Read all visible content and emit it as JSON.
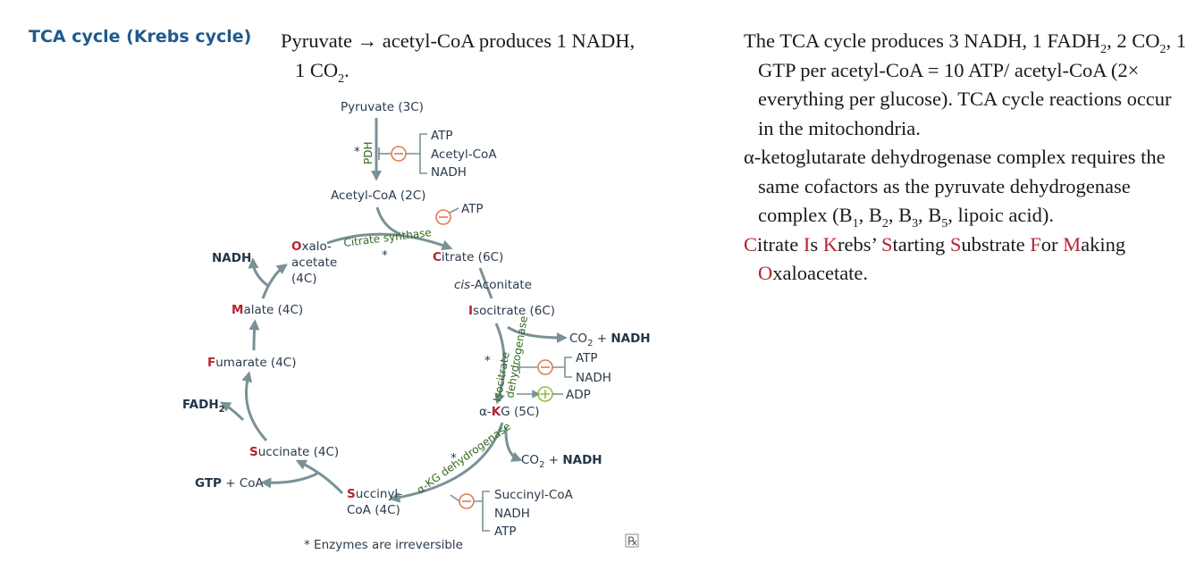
{
  "heading": "TCA cycle (Krebs cycle)",
  "intro": {
    "line1": "Pyruvate → acetyl-CoA produces 1 NADH,",
    "line2_a": "1 CO",
    "line2_sub": "2",
    "line2_b": "."
  },
  "right_text": {
    "p1_a": "The TCA cycle produces 3 NADH, 1 FADH",
    "p1_sub1": "2",
    "p1_b": ", 2 CO",
    "p1_sub2": "2",
    "p1_c": ", 1 GTP per acetyl-CoA = 10 ATP/ acetyl-CoA (2× everything per glucose). TCA cycle reactions occur in the mitochondria.",
    "p2_a": "α-ketoglutarate dehydrogenase complex requires the same cofactors as the pyruvate dehydrogenase complex (B",
    "p2_s1": "1",
    "p2_b": ", B",
    "p2_s2": "2",
    "p2_c": ", B",
    "p2_s3": "3",
    "p2_d": ", B",
    "p2_s5": "5",
    "p2_e": ", lipoic acid).",
    "mnemonic": [
      {
        "first": "C",
        "rest": "itrate "
      },
      {
        "first": "I",
        "rest": "s "
      },
      {
        "first": "K",
        "rest": "rebs’ "
      },
      {
        "first": "S",
        "rest": "tarting "
      },
      {
        "first": "S",
        "rest": "ubstrate "
      },
      {
        "first": "F",
        "rest": "or "
      },
      {
        "first": "M",
        "rest": "aking "
      },
      {
        "first": "O",
        "rest": "xaloacetate."
      }
    ]
  },
  "diagram": {
    "pyruvate": "Pyruvate (3C)",
    "pdh": "PDH",
    "star": "*",
    "pdh_inhib": [
      "ATP",
      "Acetyl-CoA",
      "NADH"
    ],
    "acetyl_coa": "Acetyl-CoA (2C)",
    "atp": "ATP",
    "citrate_synthase": "Citrate synthase",
    "oxaloacetate": {
      "first": "O",
      "rest": "xalo-",
      "line2": "acetate",
      "line3": "(4C)"
    },
    "citrate": {
      "first": "C",
      "rest": "itrate (6C)"
    },
    "cis_aconitate": {
      "italic": "cis",
      "rest": "-Aconitate"
    },
    "isocitrate": {
      "first": "I",
      "rest": "socitrate (6C)"
    },
    "co2_nadh_1": {
      "co2": "CO",
      "sub": "2",
      "plus": " + ",
      "nadh": "NADH"
    },
    "isocitrate_dh": [
      "Isocitrate",
      "dehydrogenase"
    ],
    "icdh_inhib": [
      "ATP",
      "NADH"
    ],
    "adp": "ADP",
    "akg": {
      "pre": "α-",
      "first": "K",
      "rest": "G (5C)"
    },
    "co2_nadh_2": {
      "co2": "CO",
      "sub": "2",
      "plus": " + ",
      "nadh": "NADH"
    },
    "akg_dh": "α-KG dehydrogenase",
    "akgdh_inhib": [
      "Succinyl-CoA",
      "NADH",
      "ATP"
    ],
    "succinyl_coa": {
      "first": "S",
      "rest": "uccinyl-",
      "line2": "CoA (4C)"
    },
    "gtp_coa": {
      "gtp": "GTP",
      "rest": " + CoA"
    },
    "succinate": {
      "first": "S",
      "rest": "uccinate (4C)"
    },
    "fadh2": {
      "main": "FADH",
      "sub": "2"
    },
    "fumarate": {
      "first": "F",
      "rest": "umarate (4C)"
    },
    "malate": {
      "first": "M",
      "rest": "alate (4C)"
    },
    "nadh": "NADH",
    "footnote": "* Enzymes are irreversible",
    "rx_icon": "℞"
  },
  "colors": {
    "heading": "#1f5a8f",
    "red_letter": "#b5232f",
    "arrow": "#7a9196",
    "enzyme_green": "#2f6b1f",
    "inhibit": "#e07a55",
    "activate": "#8fbf3f"
  }
}
